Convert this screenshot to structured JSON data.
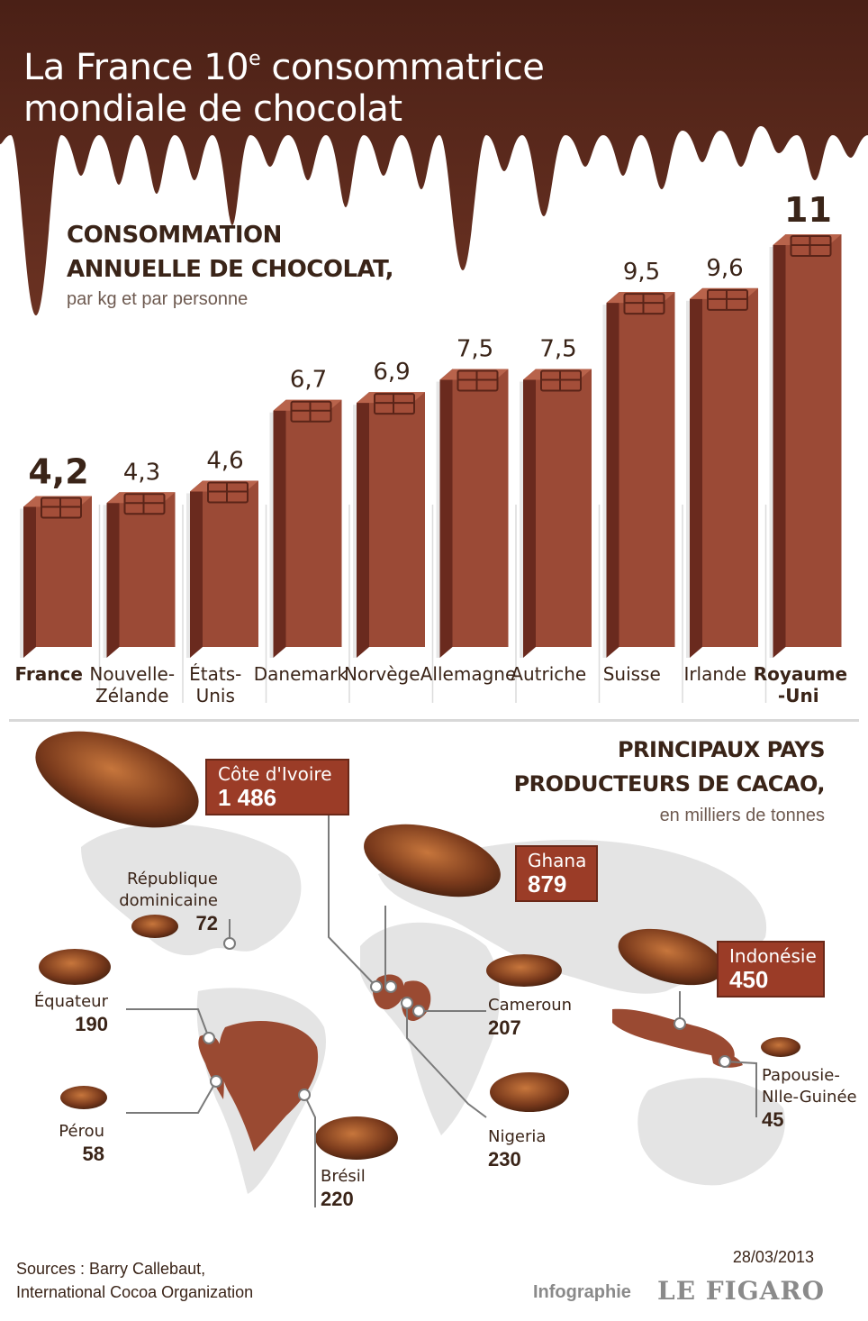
{
  "header": {
    "title_line1_pre": "La France 10",
    "title_sup": "e",
    "title_line1_post": " consommatrice",
    "title_line2": "mondiale de chocolat"
  },
  "consumption": {
    "title_line1": "CONSOMMATION",
    "title_line2": "ANNUELLE DE CHOCOLAT,",
    "unit": "par kg et par personne"
  },
  "production": {
    "title_line1": "PRINCIPAUX PAYS",
    "title_line2": "PRODUCTEURS DE CACAO,",
    "unit": "en milliers de tonnes",
    "countries": [
      {
        "name": "Côte d'Ivoire",
        "value": "1 486"
      },
      {
        "name": "Ghana",
        "value": "879"
      },
      {
        "name": "Indonésie",
        "value": "450"
      },
      {
        "name": "Nigeria",
        "value": "230"
      },
      {
        "name": "Brésil",
        "value": "220"
      },
      {
        "name": "Cameroun",
        "value": "207"
      },
      {
        "name": "Équateur",
        "value": "190"
      },
      {
        "name": "République dominicaine",
        "name_line1": "République",
        "name_line2": "dominicaine",
        "value": "72"
      },
      {
        "name": "Pérou",
        "value": "58"
      },
      {
        "name": "Papousie-Nlle-Guinée",
        "name_line1": "Papousie-",
        "name_line2": "Nlle-Guinée",
        "value": "45"
      }
    ]
  },
  "footer": {
    "sources_line1": "Sources : Barry Callebaut,",
    "sources_line2": "International Cocoa Organization",
    "date": "28/03/2013",
    "credit": "Infographie",
    "brand": "LE FIGARO"
  },
  "colors": {
    "chocolate": "#5a2a1c",
    "bar_front": "#9b4a36",
    "bar_side": "#6a2a1e",
    "callout": "#9b3c27",
    "map_land": "#e3e3e3",
    "map_producer": "#9a4a32"
  },
  "chart_data": {
    "type": "bar",
    "title": "CONSOMMATION ANNUELLE DE CHOCOLAT,",
    "subtitle": "par kg et par personne",
    "categories": [
      "France",
      "Nouvelle-Zélande",
      "États-Unis",
      "Danemark",
      "Norvège",
      "Allemagne",
      "Autriche",
      "Suisse",
      "Irlande",
      "Royaume-Uni"
    ],
    "category_lines": [
      [
        "France"
      ],
      [
        "Nouvelle-",
        "Zélande"
      ],
      [
        "États-",
        "Unis"
      ],
      [
        "Danemark"
      ],
      [
        "Norvège"
      ],
      [
        "Allemagne"
      ],
      [
        "Autriche"
      ],
      [
        "Suisse"
      ],
      [
        "Irlande"
      ],
      [
        "Royaume",
        "-Uni"
      ]
    ],
    "values": [
      4.2,
      4.3,
      4.6,
      6.7,
      6.9,
      7.5,
      7.5,
      9.5,
      9.6,
      11
    ],
    "value_labels": [
      "4,2",
      "4,3",
      "4,6",
      "6,7",
      "6,9",
      "7,5",
      "7,5",
      "9,5",
      "9,6",
      "11"
    ],
    "highlight": [
      "France",
      "Royaume-Uni"
    ],
    "ylim": [
      0,
      11
    ],
    "grid": false,
    "legend": "none"
  }
}
